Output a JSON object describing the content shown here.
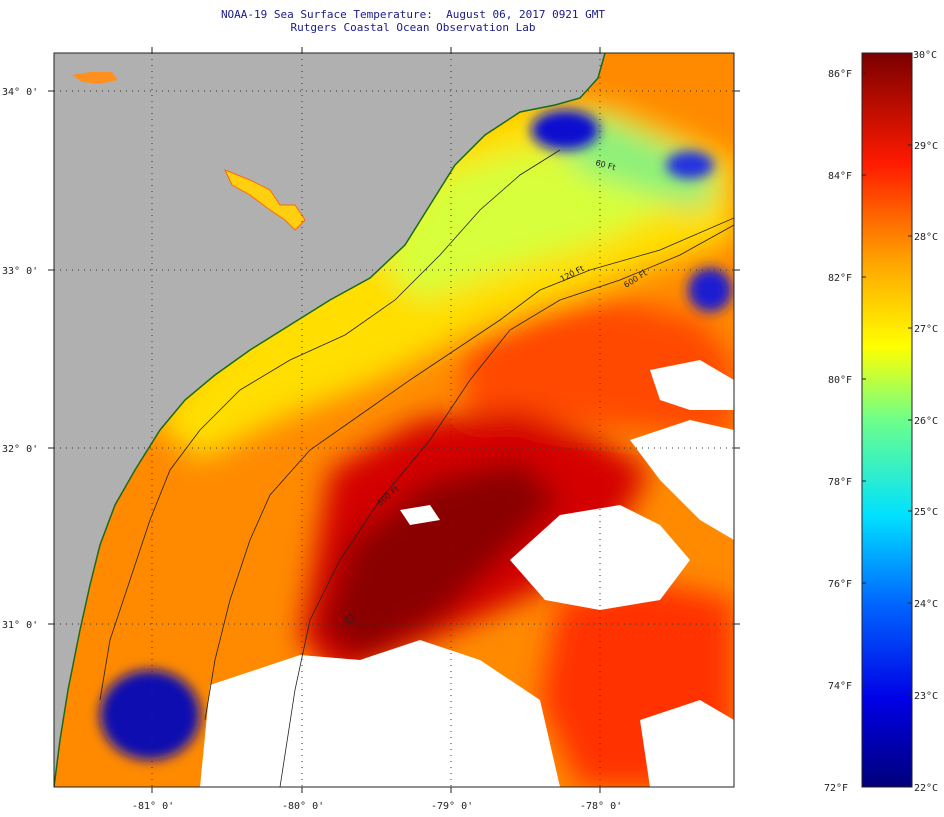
{
  "title": {
    "line1": "NOAA-19 Sea Surface Temperature:  August 06, 2017 0921 GMT",
    "line2": "Rutgers Coastal Ocean Observation Lab"
  },
  "map": {
    "lat_labels": [
      "34° 0'",
      "33° 0'",
      "32° 0'",
      "31° 0'"
    ],
    "lon_labels": [
      "-81° 0'",
      "-80° 0'",
      "-79° 0'",
      "-78° 0'"
    ],
    "contour_labels": [
      "120 Ft",
      "600 Ft",
      "60 Ft",
      "600 Ft"
    ],
    "colors": {
      "land": "#b0b0b0",
      "cloud": "#ffffff",
      "cold": "#00008c",
      "cool": "#2bd4ff",
      "mid": "#ffff00",
      "warm": "#ff6a00",
      "hot": "#8a0000"
    }
  },
  "colorbar": {
    "fahrenheit_labels": [
      "86°F",
      "84°F",
      "82°F",
      "80°F",
      "78°F",
      "76°F",
      "74°F",
      "72°F"
    ],
    "celsius_labels": [
      "30°C",
      "29°C",
      "28°C",
      "27°C",
      "26°C",
      "25°C",
      "24°C",
      "23°C",
      "22°C"
    ],
    "range_c": [
      22,
      30
    ],
    "range_f": [
      72,
      86
    ]
  }
}
